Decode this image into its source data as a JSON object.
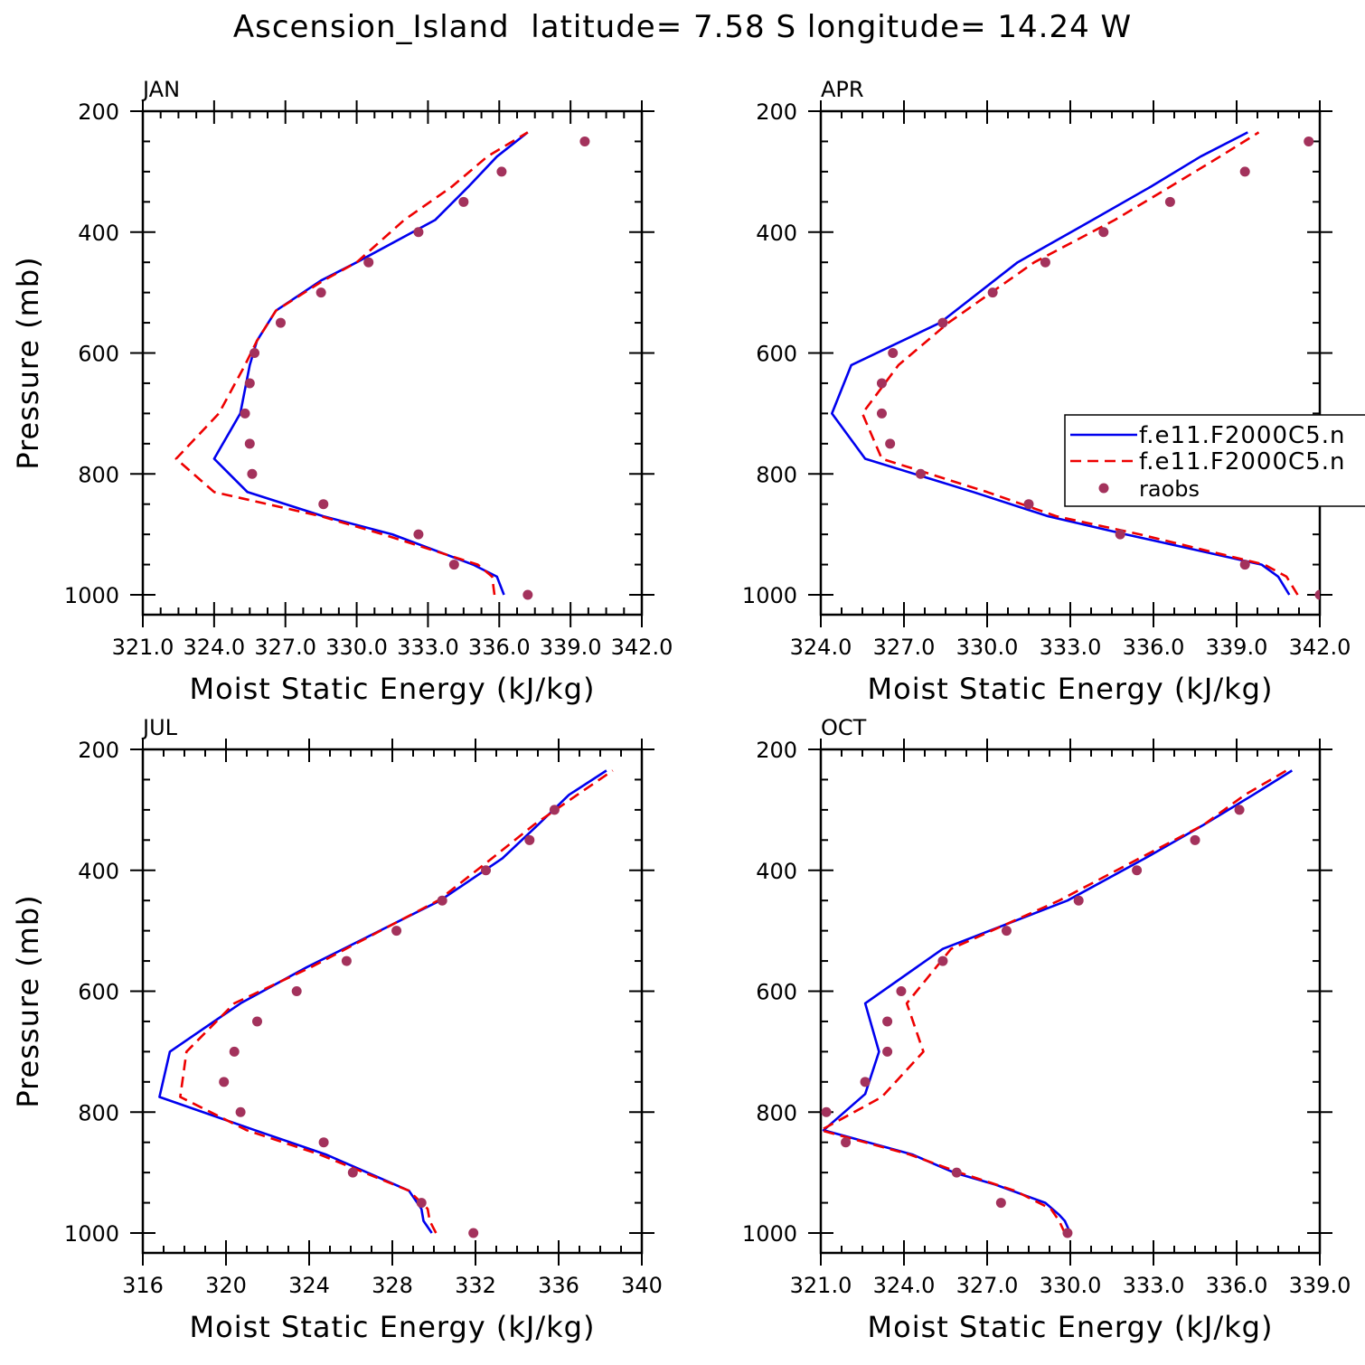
{
  "title": "Ascension_Island  latitude= 7.58 S longitude= 14.24 W",
  "colors": {
    "model1": "#0000ee",
    "model2": "#ee0000",
    "raobs": "#a3325c"
  },
  "legend": {
    "entries": [
      "f.e11.F2000C5.n",
      "f.e11.F2000C5.n",
      "raobs"
    ]
  },
  "chart_data": [
    {
      "type": "line",
      "panel_label": "JAN",
      "xlabel": "Moist Static Energy (kJ/kg)",
      "ylabel": "Pressure (mb)",
      "xlim": [
        321.0,
        342.0
      ],
      "xticks": [
        321.0,
        324.0,
        327.0,
        330.0,
        333.0,
        336.0,
        339.0,
        342.0
      ],
      "xtick_labels": [
        "321.0",
        "324.0",
        "327.0",
        "330.0",
        "333.0",
        "336.0",
        "339.0",
        "342.0"
      ],
      "ylim": [
        1025,
        200
      ],
      "yticks": [
        200,
        400,
        600,
        800,
        1000
      ],
      "ytick_labels": [
        "200",
        "400",
        "600",
        "800",
        "1000"
      ],
      "series": [
        {
          "style": "model1",
          "points": [
            [
              1000,
              336.2
            ],
            [
              970,
              335.9
            ],
            [
              950,
              334.9
            ],
            [
              900,
              331.5
            ],
            [
              870,
              328.6
            ],
            [
              830,
              325.4
            ],
            [
              775,
              324.0
            ],
            [
              700,
              325.1
            ],
            [
              620,
              325.5
            ],
            [
              580,
              325.8
            ],
            [
              530,
              326.6
            ],
            [
              480,
              328.5
            ],
            [
              450,
              330.0
            ],
            [
              380,
              333.3
            ],
            [
              325,
              334.7
            ],
            [
              275,
              335.9
            ],
            [
              235,
              337.2
            ]
          ]
        },
        {
          "style": "model2",
          "points": [
            [
              1000,
              335.8
            ],
            [
              970,
              335.7
            ],
            [
              950,
              335.1
            ],
            [
              900,
              331.1
            ],
            [
              870,
              328.5
            ],
            [
              830,
              324.0
            ],
            [
              775,
              322.4
            ],
            [
              700,
              324.2
            ],
            [
              620,
              325.3
            ],
            [
              580,
              325.8
            ],
            [
              530,
              326.6
            ],
            [
              480,
              328.6
            ],
            [
              450,
              330.0
            ],
            [
              380,
              332.0
            ],
            [
              325,
              334.0
            ],
            [
              275,
              335.5
            ],
            [
              235,
              337.2
            ]
          ]
        },
        {
          "style": "raobs",
          "points": [
            [
              1000,
              337.2
            ],
            [
              950,
              334.1
            ],
            [
              900,
              332.6
            ],
            [
              850,
              328.6
            ],
            [
              800,
              325.6
            ],
            [
              750,
              325.5
            ],
            [
              700,
              325.3
            ],
            [
              650,
              325.5
            ],
            [
              600,
              325.7
            ],
            [
              550,
              326.8
            ],
            [
              500,
              328.5
            ],
            [
              450,
              330.5
            ],
            [
              400,
              332.6
            ],
            [
              350,
              334.5
            ],
            [
              300,
              336.1
            ],
            [
              250,
              339.6
            ]
          ]
        }
      ]
    },
    {
      "type": "line",
      "panel_label": "APR",
      "xlabel": "Moist Static Energy (kJ/kg)",
      "ylabel": "",
      "xlim": [
        324.0,
        342.0
      ],
      "xticks": [
        324.0,
        327.0,
        330.0,
        333.0,
        336.0,
        339.0,
        342.0
      ],
      "xtick_labels": [
        "324.0",
        "327.0",
        "330.0",
        "333.0",
        "336.0",
        "339.0",
        "342.0"
      ],
      "ylim": [
        1025,
        200
      ],
      "yticks": [
        200,
        400,
        600,
        800,
        1000
      ],
      "ytick_labels": [
        "200",
        "400",
        "600",
        "800",
        "1000"
      ],
      "series": [
        {
          "style": "model1",
          "points": [
            [
              1000,
              340.9
            ],
            [
              970,
              340.5
            ],
            [
              950,
              339.9
            ],
            [
              900,
              335.0
            ],
            [
              870,
              332.2
            ],
            [
              830,
              329.5
            ],
            [
              775,
              325.6
            ],
            [
              700,
              324.4
            ],
            [
              620,
              325.1
            ],
            [
              550,
              328.3
            ],
            [
              450,
              331.1
            ],
            [
              380,
              333.8
            ],
            [
              325,
              335.9
            ],
            [
              275,
              337.7
            ],
            [
              235,
              339.4
            ]
          ]
        },
        {
          "style": "model2",
          "points": [
            [
              1000,
              341.2
            ],
            [
              970,
              340.8
            ],
            [
              950,
              340.0
            ],
            [
              900,
              335.5
            ],
            [
              870,
              332.5
            ],
            [
              830,
              330.0
            ],
            [
              775,
              326.2
            ],
            [
              700,
              325.5
            ],
            [
              620,
              326.8
            ],
            [
              550,
              328.6
            ],
            [
              450,
              331.7
            ],
            [
              380,
              334.6
            ],
            [
              325,
              336.6
            ],
            [
              275,
              338.4
            ],
            [
              235,
              339.8
            ]
          ]
        },
        {
          "style": "raobs",
          "points": [
            [
              1000,
              342.0
            ],
            [
              950,
              339.3
            ],
            [
              900,
              334.8
            ],
            [
              850,
              331.5
            ],
            [
              800,
              327.6
            ],
            [
              750,
              326.5
            ],
            [
              700,
              326.2
            ],
            [
              650,
              326.2
            ],
            [
              600,
              326.6
            ],
            [
              550,
              328.4
            ],
            [
              500,
              330.2
            ],
            [
              450,
              332.1
            ],
            [
              400,
              334.2
            ],
            [
              350,
              336.6
            ],
            [
              300,
              339.3
            ],
            [
              250,
              341.6
            ]
          ]
        }
      ]
    },
    {
      "type": "line",
      "panel_label": "JUL",
      "xlabel": "Moist Static Energy (kJ/kg)",
      "ylabel": "Pressure (mb)",
      "xlim": [
        316,
        340
      ],
      "xticks": [
        316,
        320,
        324,
        328,
        332,
        336,
        340
      ],
      "xtick_labels": [
        "316",
        "320",
        "324",
        "328",
        "332",
        "336",
        "340"
      ],
      "ylim": [
        1025,
        200
      ],
      "yticks": [
        200,
        400,
        600,
        800,
        1000
      ],
      "ytick_labels": [
        "200",
        "400",
        "600",
        "800",
        "1000"
      ],
      "series": [
        {
          "style": "model1",
          "points": [
            [
              1000,
              329.9
            ],
            [
              980,
              329.5
            ],
            [
              960,
              329.4
            ],
            [
              930,
              328.8
            ],
            [
              870,
              324.8
            ],
            [
              830,
              321.4
            ],
            [
              775,
              316.8
            ],
            [
              700,
              317.3
            ],
            [
              620,
              320.7
            ],
            [
              560,
              323.9
            ],
            [
              450,
              330.3
            ],
            [
              380,
              333.3
            ],
            [
              325,
              335.0
            ],
            [
              275,
              336.5
            ],
            [
              235,
              338.3
            ]
          ]
        },
        {
          "style": "model2",
          "points": [
            [
              1000,
              330.1
            ],
            [
              980,
              329.8
            ],
            [
              960,
              329.7
            ],
            [
              930,
              328.8
            ],
            [
              870,
              324.5
            ],
            [
              830,
              321.0
            ],
            [
              775,
              317.8
            ],
            [
              700,
              318.1
            ],
            [
              620,
              320.4
            ],
            [
              560,
              324.1
            ],
            [
              450,
              330.2
            ],
            [
              380,
              332.8
            ],
            [
              325,
              334.8
            ],
            [
              275,
              336.9
            ],
            [
              235,
              338.6
            ]
          ]
        },
        {
          "style": "raobs",
          "points": [
            [
              1000,
              331.9
            ],
            [
              950,
              329.4
            ],
            [
              900,
              326.1
            ],
            [
              850,
              324.7
            ],
            [
              800,
              320.7
            ],
            [
              750,
              319.9
            ],
            [
              700,
              320.4
            ],
            [
              650,
              321.5
            ],
            [
              600,
              323.4
            ],
            [
              550,
              325.8
            ],
            [
              500,
              328.2
            ],
            [
              450,
              330.4
            ],
            [
              400,
              332.5
            ],
            [
              350,
              334.6
            ],
            [
              300,
              335.8
            ]
          ]
        }
      ]
    },
    {
      "type": "line",
      "panel_label": "OCT",
      "xlabel": "Moist Static Energy (kJ/kg)",
      "ylabel": "",
      "xlim": [
        321.0,
        339.0
      ],
      "xticks": [
        321.0,
        324.0,
        327.0,
        330.0,
        333.0,
        336.0,
        339.0
      ],
      "xtick_labels": [
        "321.0",
        "324.0",
        "327.0",
        "330.0",
        "333.0",
        "336.0",
        "339.0"
      ],
      "ylim": [
        1025,
        200
      ],
      "yticks": [
        200,
        400,
        600,
        800,
        1000
      ],
      "ytick_labels": [
        "200",
        "400",
        "600",
        "800",
        "1000"
      ],
      "series": [
        {
          "style": "model1",
          "points": [
            [
              1000,
              330.0
            ],
            [
              980,
              329.8
            ],
            [
              970,
              329.6
            ],
            [
              950,
              329.1
            ],
            [
              920,
              327.3
            ],
            [
              900,
              325.8
            ],
            [
              870,
              324.3
            ],
            [
              830,
              321.1
            ],
            [
              770,
              322.6
            ],
            [
              700,
              323.1
            ],
            [
              620,
              322.6
            ],
            [
              530,
              325.4
            ],
            [
              450,
              329.9
            ],
            [
              380,
              332.7
            ],
            [
              325,
              334.8
            ],
            [
              275,
              336.6
            ],
            [
              235,
              338.0
            ]
          ]
        },
        {
          "style": "model2",
          "points": [
            [
              1000,
              329.8
            ],
            [
              980,
              329.6
            ],
            [
              960,
              329.3
            ],
            [
              930,
              328.0
            ],
            [
              900,
              326.0
            ],
            [
              870,
              324.2
            ],
            [
              830,
              321.0
            ],
            [
              775,
              323.2
            ],
            [
              700,
              324.7
            ],
            [
              620,
              324.1
            ],
            [
              530,
              325.7
            ],
            [
              450,
              329.6
            ],
            [
              380,
              332.5
            ],
            [
              325,
              334.8
            ],
            [
              275,
              336.3
            ],
            [
              235,
              337.8
            ]
          ]
        },
        {
          "style": "raobs",
          "points": [
            [
              1000,
              329.9
            ],
            [
              950,
              327.5
            ],
            [
              900,
              325.9
            ],
            [
              850,
              321.9
            ],
            [
              800,
              321.2
            ],
            [
              750,
              322.6
            ],
            [
              700,
              323.4
            ],
            [
              650,
              323.4
            ],
            [
              600,
              323.9
            ],
            [
              550,
              325.4
            ],
            [
              500,
              327.7
            ],
            [
              450,
              330.3
            ],
            [
              400,
              332.4
            ],
            [
              350,
              334.5
            ],
            [
              300,
              336.1
            ]
          ]
        }
      ]
    }
  ]
}
